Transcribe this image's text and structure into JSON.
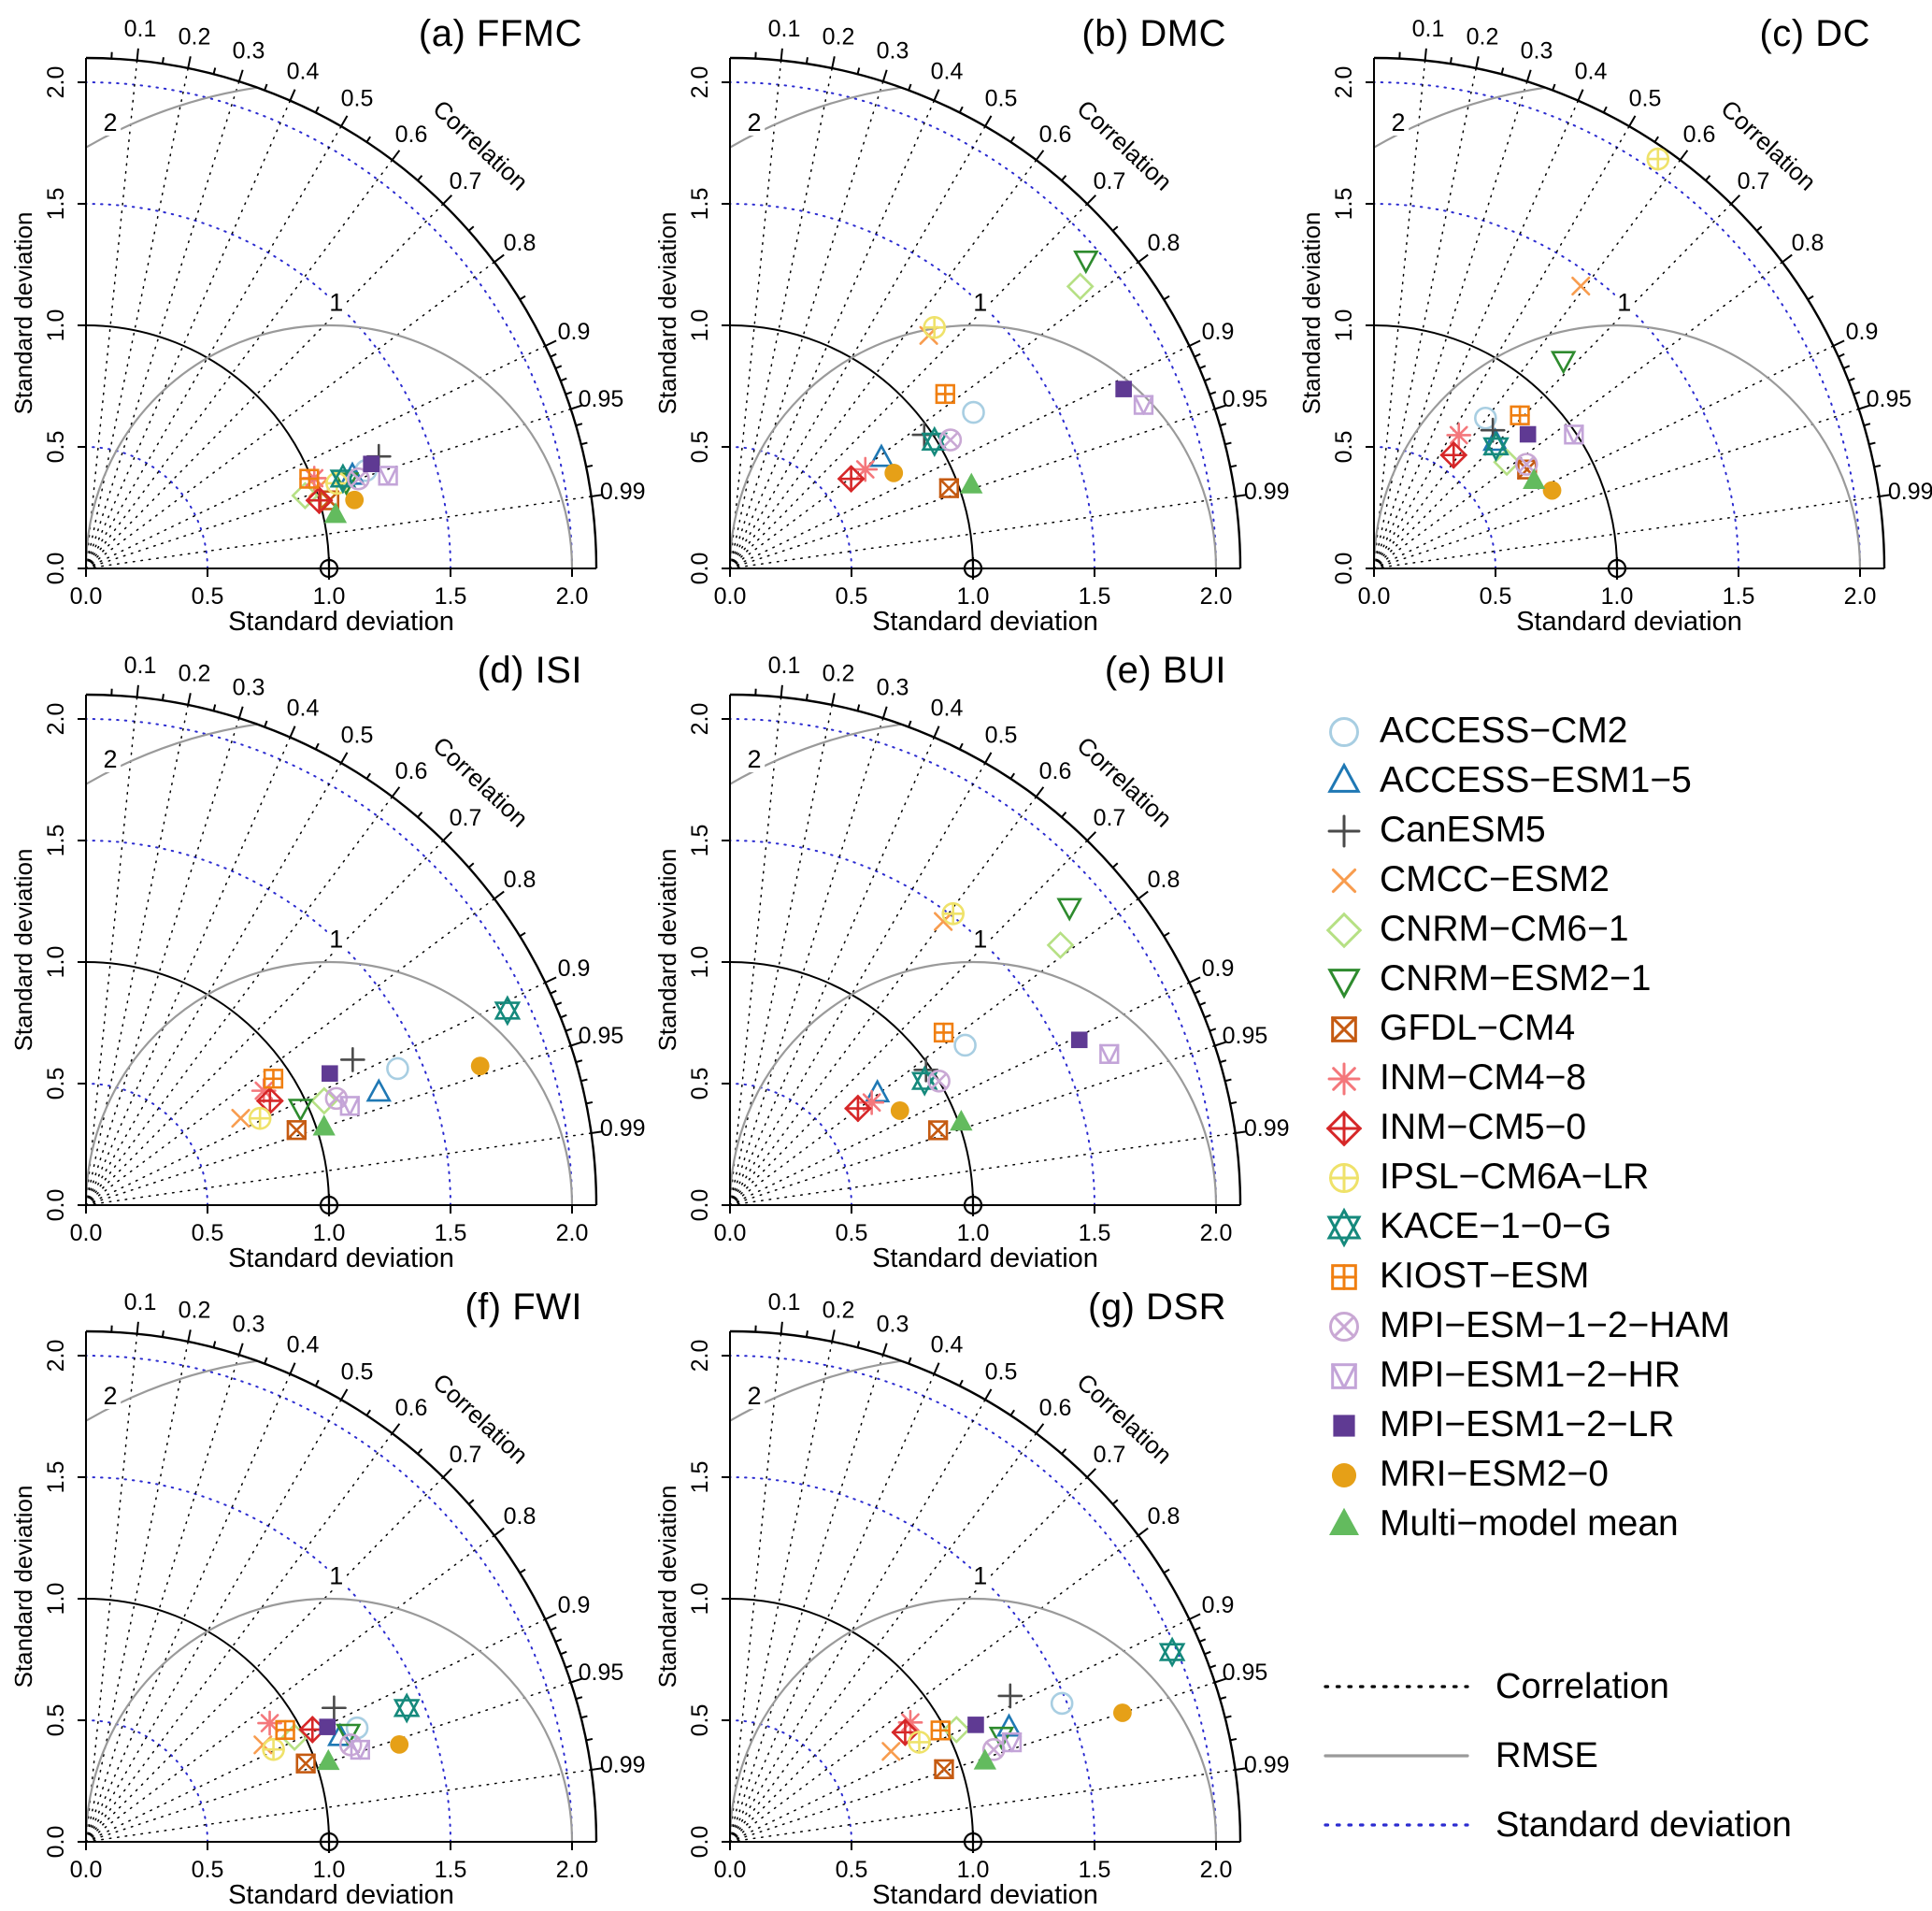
{
  "chart_data": {
    "type": "scatter",
    "subtype": "taylor_diagram_grid",
    "axis": {
      "label": "Standard deviation",
      "ticks": [
        0,
        0.5,
        1,
        1.5,
        2
      ],
      "tick_labels": [
        "0.0",
        "0.5",
        "1.0",
        "1.5",
        "2.0"
      ],
      "max": 2.1,
      "corr_label": "Correlation",
      "corr_ticks_major": [
        0.1,
        0.2,
        0.3,
        0.4,
        0.5,
        0.6,
        0.7,
        0.8,
        0.9,
        0.95,
        0.99
      ],
      "corr_ticks_minor": [
        0.05,
        0.15,
        0.25,
        0.35,
        0.45,
        0.55,
        0.65,
        0.75,
        0.85,
        0.91,
        0.92,
        0.93,
        0.94,
        0.96,
        0.97,
        0.98
      ],
      "sd_arcs": [
        0.5,
        1.5,
        2.0
      ],
      "ref_sd": 1.0,
      "sd_arc_color": "#2b2bd0",
      "ray_color": "#000000",
      "rmse_color": "#9a9a9a",
      "rmse_arcs": [
        {
          "r": 1,
          "label": "1",
          "lx": 1.03,
          "ly": 1.06
        },
        {
          "r": 2,
          "label": "2",
          "lx": 0.1,
          "ly": 1.8
        }
      ]
    },
    "value_format": [
      "standard_deviation",
      "correlation"
    ],
    "models": [
      {
        "name": "ACCESS−CM2",
        "color": "#a8cee2",
        "marker": "circle-open"
      },
      {
        "name": "ACCESS−ESM1−5",
        "color": "#1f78b4",
        "marker": "triangle-open"
      },
      {
        "name": "CanESM5",
        "color": "#4a4a4a",
        "marker": "plus"
      },
      {
        "name": "CMCC−ESM2",
        "color": "#f89c4e",
        "marker": "x"
      },
      {
        "name": "CNRM−CM6−1",
        "color": "#b6e084",
        "marker": "diamond-open"
      },
      {
        "name": "CNRM−ESM2−1",
        "color": "#2e8b2e",
        "marker": "triangle-down-open"
      },
      {
        "name": "GFDL−CM4",
        "color": "#c55a11",
        "marker": "square-x"
      },
      {
        "name": "INM−CM4−8",
        "color": "#f4777b",
        "marker": "asterisk"
      },
      {
        "name": "INM−CM5−0",
        "color": "#d62728",
        "marker": "diamond-plus"
      },
      {
        "name": "IPSL−CM6A−LR",
        "color": "#efe26a",
        "marker": "circle-plus"
      },
      {
        "name": "KACE−1−0−G",
        "color": "#15897c",
        "marker": "star-of-david"
      },
      {
        "name": "KIOST−ESM",
        "color": "#f07f10",
        "marker": "square-plus"
      },
      {
        "name": "MPI−ESM−1−2−HAM",
        "color": "#c9a8d4",
        "marker": "circle-x"
      },
      {
        "name": "MPI−ESM1−2−HR",
        "color": "#c3a4d8",
        "marker": "square-triangle"
      },
      {
        "name": "MPI−ESM1−2−LR",
        "color": "#5f3a93",
        "marker": "square-filled"
      },
      {
        "name": "MRI−ESM2−0",
        "color": "#e6a017",
        "marker": "circle-filled"
      },
      {
        "name": "Multi−model mean",
        "color": "#63bb5e",
        "marker": "triangle-filled"
      }
    ],
    "panels": [
      {
        "id": "a",
        "title": "(a) FFMC",
        "values": [
          [
            1.22,
            0.944
          ],
          [
            1.16,
            0.945
          ],
          [
            1.29,
            0.934
          ],
          [
            1.01,
            0.945
          ],
          [
            0.95,
            0.949
          ],
          [
            1.13,
            0.948
          ],
          [
            1.04,
            0.963
          ],
          [
            1.01,
            0.93
          ],
          [
            1.0,
            0.96
          ],
          [
            1.09,
            0.947
          ],
          [
            1.12,
            0.944
          ],
          [
            0.99,
            0.928
          ],
          [
            1.18,
            0.95
          ],
          [
            1.3,
            0.956
          ],
          [
            1.25,
            0.939
          ],
          [
            1.14,
            0.969
          ],
          [
            1.05,
            0.978
          ]
        ]
      },
      {
        "id": "b",
        "title": "(b) DMC",
        "values": [
          [
            1.19,
            0.842
          ],
          [
            0.77,
            0.809
          ],
          [
            0.97,
            0.824
          ],
          [
            1.26,
            0.649
          ],
          [
            1.85,
            0.779
          ],
          [
            1.94,
            0.755
          ],
          [
            0.96,
            0.939
          ],
          [
            0.69,
            0.807
          ],
          [
            0.62,
            0.804
          ],
          [
            1.3,
            0.647
          ],
          [
            0.99,
            0.85
          ],
          [
            1.14,
            0.777
          ],
          [
            1.05,
            0.864
          ],
          [
            1.83,
            0.93
          ],
          [
            1.78,
            0.91
          ],
          [
            0.78,
            0.864
          ],
          [
            1.05,
            0.946
          ]
        ]
      },
      {
        "id": "c",
        "title": "(c) DC",
        "values": [
          [
            0.77,
            0.596
          ],
          [
            0.72,
            0.693
          ],
          [
            0.75,
            0.652
          ],
          [
            1.44,
            0.591
          ],
          [
            0.7,
            0.781
          ],
          [
            1.16,
            0.672
          ],
          [
            0.75,
            0.84
          ],
          [
            0.65,
            0.537
          ],
          [
            0.57,
            0.575
          ],
          [
            2.05,
            0.57
          ],
          [
            0.71,
            0.707
          ],
          [
            0.87,
            0.69
          ],
          [
            0.76,
            0.826
          ],
          [
            0.99,
            0.831
          ],
          [
            0.84,
            0.754
          ],
          [
            0.8,
            0.916
          ],
          [
            0.75,
            0.878
          ]
        ]
      },
      {
        "id": "d",
        "title": "(d) ISI",
        "values": [
          [
            1.4,
            0.916
          ],
          [
            1.29,
            0.934
          ],
          [
            1.25,
            0.878
          ],
          [
            0.73,
            0.872
          ],
          [
            1.07,
            0.916
          ],
          [
            0.97,
            0.91
          ],
          [
            0.92,
            0.942
          ],
          [
            0.87,
            0.841
          ],
          [
            0.87,
            0.87
          ],
          [
            0.8,
            0.895
          ],
          [
            1.91,
            0.908
          ],
          [
            0.93,
            0.829
          ],
          [
            1.12,
            0.92
          ],
          [
            1.16,
            0.936
          ],
          [
            1.14,
            0.88
          ],
          [
            1.72,
            0.943
          ],
          [
            1.03,
            0.951
          ]
        ]
      },
      {
        "id": "e",
        "title": "(e) BUI",
        "values": [
          [
            1.17,
            0.827
          ],
          [
            0.76,
            0.798
          ],
          [
            0.98,
            0.823
          ],
          [
            1.46,
            0.601
          ],
          [
            1.73,
            0.786
          ],
          [
            1.86,
            0.751
          ],
          [
            0.91,
            0.941
          ],
          [
            0.72,
            0.81
          ],
          [
            0.66,
            0.798
          ],
          [
            1.51,
            0.608
          ],
          [
            0.95,
            0.843
          ],
          [
            1.13,
            0.778
          ],
          [
            1.0,
            0.86
          ],
          [
            1.68,
            0.929
          ],
          [
            1.59,
            0.904
          ],
          [
            0.8,
            0.874
          ],
          [
            1.01,
            0.942
          ]
        ]
      },
      {
        "id": "f",
        "title": "(f) FWI",
        "values": [
          [
            1.21,
            0.922
          ],
          [
            1.13,
            0.925
          ],
          [
            1.16,
            0.88
          ],
          [
            0.83,
            0.877
          ],
          [
            0.96,
            0.894
          ],
          [
            1.17,
            0.923
          ],
          [
            0.96,
            0.942
          ],
          [
            0.9,
            0.84
          ],
          [
            1.04,
            0.896
          ],
          [
            0.86,
            0.897
          ],
          [
            1.43,
            0.923
          ],
          [
            0.94,
            0.872
          ],
          [
            1.16,
            0.939
          ],
          [
            1.19,
            0.948
          ],
          [
            1.1,
            0.903
          ],
          [
            1.35,
            0.955
          ],
          [
            1.05,
            0.95
          ]
        ]
      },
      {
        "id": "g",
        "title": "(g) DSR",
        "values": [
          [
            1.48,
            0.923
          ],
          [
            1.24,
            0.926
          ],
          [
            1.3,
            0.887
          ],
          [
            0.76,
            0.872
          ],
          [
            1.04,
            0.896
          ],
          [
            1.2,
            0.931
          ],
          [
            0.93,
            0.947
          ],
          [
            0.89,
            0.834
          ],
          [
            0.85,
            0.848
          ],
          [
            0.88,
            0.885
          ],
          [
            1.98,
            0.919
          ],
          [
            0.98,
            0.884
          ],
          [
            1.15,
            0.944
          ],
          [
            1.23,
            0.943
          ],
          [
            1.12,
            0.903
          ],
          [
            1.7,
            0.95
          ],
          [
            1.1,
            0.954
          ]
        ]
      }
    ],
    "legend_lines": [
      {
        "label": "Correlation",
        "color": "#000000",
        "style": "dotted"
      },
      {
        "label": "RMSE",
        "color": "#9a9a9a",
        "style": "solid"
      },
      {
        "label": "Standard deviation",
        "color": "#2b2bd0",
        "style": "dotted"
      }
    ]
  }
}
